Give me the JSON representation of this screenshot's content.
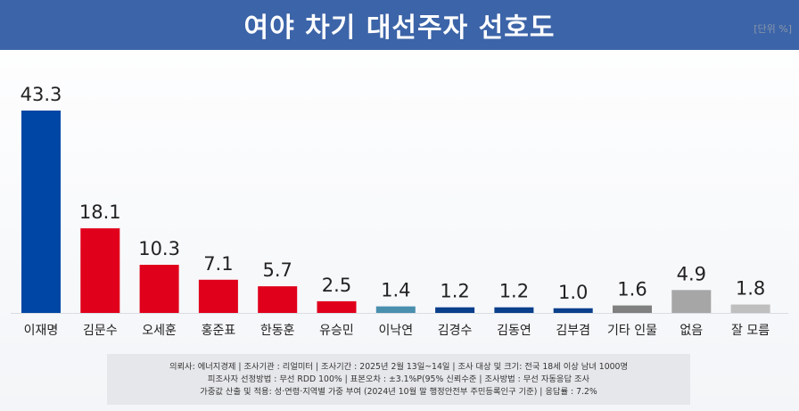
{
  "header": {
    "title": "여야 차기 대선주자 선호도",
    "unit": "[단위 %]"
  },
  "chart_data": {
    "type": "bar",
    "title": "여야 차기 대선주자 선호도",
    "unit": "[단위 %]",
    "categories": [
      "이재명",
      "김문수",
      "오세훈",
      "홍준표",
      "한동훈",
      "유승민",
      "이낙연",
      "김경수",
      "김동연",
      "김부겸",
      "기타 인물",
      "없음",
      "잘 모름"
    ],
    "values": [
      43.3,
      18.1,
      10.3,
      7.1,
      5.7,
      2.5,
      1.4,
      1.2,
      1.2,
      1.0,
      1.6,
      4.9,
      1.8
    ],
    "value_labels": [
      "43.3",
      "18.1",
      "10.3",
      "7.1",
      "5.7",
      "2.5",
      "1.4",
      "1.2",
      "1.2",
      "1.0",
      "1.6",
      "4.9",
      "1.8"
    ],
    "colors": [
      "#0046a4",
      "#e0001b",
      "#e0001b",
      "#e0001b",
      "#e0001b",
      "#e0001b",
      "#4a8fae",
      "#0a3f8c",
      "#0a3f8c",
      "#0a3f8c",
      "#808080",
      "#a6a6a6",
      "#bfbfbf"
    ],
    "ylim": [
      0,
      43.3
    ],
    "grid": false,
    "legend": "none"
  },
  "footnote": {
    "line1": "의뢰사: 에너지경제 | 조사기관 : 리얼미터  |  조사기간 : 2025년 2월 13일~14일 | 조사 대상 및 크기: 전국 18세 이상 남녀 1000명",
    "line2": "피조사자 선정방법 : 무선 RDD 100% | 표본오차 : ±3.1%P(95% 신뢰수준 | 조사방법 : 무선 자동응답 조사",
    "line3": "가중값 산출 및 적용: 성·연령·지역별 가중 부여 (2024년 10월 말 행정안전부 주민등록인구 기준) | 응답률 : 7.2%"
  }
}
